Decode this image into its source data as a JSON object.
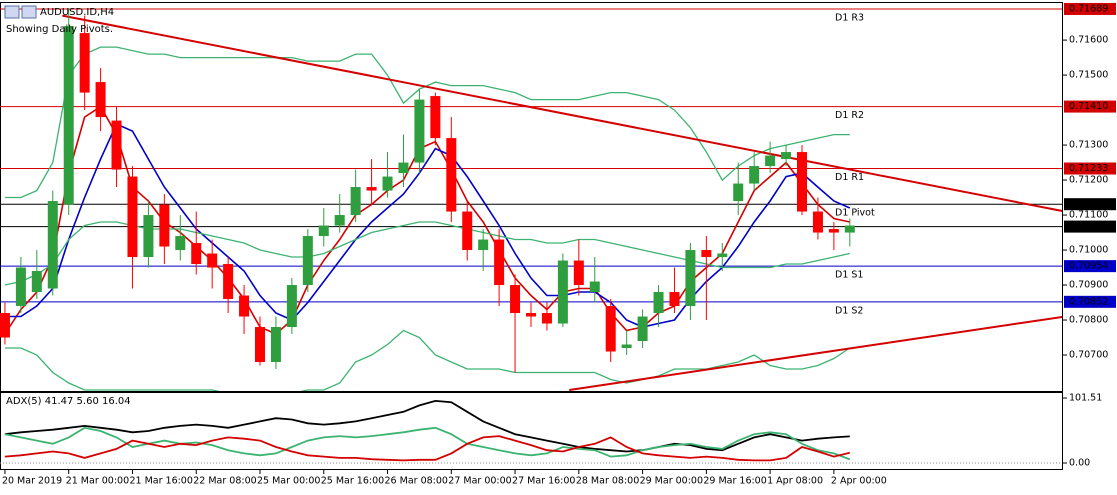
{
  "chart_data": {
    "type": "candlestick",
    "symbol": "AUDUSD.ID,H4",
    "subtitle": "Showing Daily Pivots.",
    "categories": [
      "20 Mar 2019",
      null,
      null,
      null,
      "21 Mar 00:00",
      null,
      null,
      null,
      "21 Mar 16:00",
      null,
      null,
      null,
      "22 Mar 08:00",
      null,
      null,
      null,
      "25 Mar 00:00",
      null,
      null,
      null,
      "25 Mar 16:00",
      null,
      null,
      null,
      "26 Mar 08:00",
      null,
      null,
      null,
      "27 Mar 00:00",
      null,
      null,
      null,
      "27 Mar 16:00",
      null,
      null,
      null,
      "28 Mar 08:00",
      null,
      null,
      null,
      "29 Mar 00:00",
      null,
      null,
      null,
      "29 Mar 16:00",
      null,
      null,
      null,
      "1 Apr 08:00",
      null,
      null,
      null,
      "2 Apr 00:00",
      null
    ],
    "open": [
      0.7082,
      0.7084,
      0.7088,
      0.7089,
      0.7113,
      0.7162,
      0.7148,
      0.7137,
      0.7121,
      0.7098,
      0.7113,
      0.71,
      0.7102,
      0.7099,
      0.7096,
      0.7087,
      0.7078,
      0.7068,
      0.7078,
      0.709,
      0.7104,
      0.7107,
      0.711,
      0.7118,
      0.7117,
      0.7122,
      0.7125,
      0.7144,
      0.7132,
      0.7111,
      0.71,
      0.7103,
      0.709,
      0.7082,
      0.7082,
      0.7079,
      0.7097,
      0.7088,
      0.7084,
      0.7072,
      0.7074,
      0.7082,
      0.7088,
      0.7084,
      0.71,
      0.7098,
      0.7114,
      0.7119,
      0.7124,
      0.7126,
      0.7128,
      0.7111,
      0.7106,
      0.7105
    ],
    "high": [
      0.7085,
      0.7098,
      0.71,
      0.7117,
      0.7169,
      0.7167,
      0.7152,
      0.7141,
      0.7124,
      0.7114,
      0.7116,
      0.711,
      0.7111,
      0.7103,
      0.7098,
      0.709,
      0.7081,
      0.7081,
      0.7092,
      0.7106,
      0.7112,
      0.7116,
      0.7123,
      0.7126,
      0.7128,
      0.7133,
      0.7146,
      0.7145,
      0.7138,
      0.7114,
      0.7106,
      0.7106,
      0.7093,
      0.7085,
      0.7085,
      0.7099,
      0.7103,
      0.7098,
      0.7086,
      0.7077,
      0.7083,
      0.709,
      0.7095,
      0.7102,
      0.7104,
      0.7102,
      0.7125,
      0.7128,
      0.7131,
      0.713,
      0.713,
      0.7115,
      0.7108,
      0.7109
    ],
    "low": [
      0.7073,
      0.7082,
      0.7086,
      0.7087,
      0.711,
      0.714,
      0.7134,
      0.7118,
      0.7089,
      0.7095,
      0.7096,
      0.7097,
      0.7093,
      0.7089,
      0.7082,
      0.7076,
      0.7067,
      0.7066,
      0.7076,
      0.7088,
      0.7101,
      0.7105,
      0.7108,
      0.7113,
      0.7115,
      0.7118,
      0.7122,
      0.713,
      0.7108,
      0.7097,
      0.7094,
      0.7084,
      0.7065,
      0.7078,
      0.7077,
      0.7078,
      0.7087,
      0.7085,
      0.7068,
      0.707,
      0.7072,
      0.7078,
      0.7082,
      0.708,
      0.708,
      0.7094,
      0.711,
      0.7117,
      0.7122,
      0.7124,
      0.711,
      0.7103,
      0.71,
      0.7101
    ],
    "close": [
      0.7075,
      0.7095,
      0.7094,
      0.7114,
      0.7164,
      0.7145,
      0.7138,
      0.7123,
      0.7098,
      0.711,
      0.7101,
      0.7104,
      0.7096,
      0.7095,
      0.7086,
      0.7081,
      0.7068,
      0.7078,
      0.709,
      0.7104,
      0.7107,
      0.711,
      0.7118,
      0.7117,
      0.7121,
      0.7125,
      0.7143,
      0.7132,
      0.7111,
      0.71,
      0.7103,
      0.709,
      0.7082,
      0.7081,
      0.7079,
      0.7097,
      0.709,
      0.7091,
      0.7071,
      0.7073,
      0.7081,
      0.7088,
      0.7084,
      0.71,
      0.7098,
      0.7099,
      0.7119,
      0.7124,
      0.7127,
      0.7128,
      0.7111,
      0.7105,
      0.7105,
      0.7107
    ],
    "up_color": "#2e9e3e",
    "down_color": "#ff0000",
    "series": [
      {
        "color": "#d40000",
        "values": [
          0.7076,
          0.7083,
          0.7088,
          0.7098,
          0.7122,
          0.7138,
          0.7141,
          0.7133,
          0.7118,
          0.7114,
          0.7108,
          0.7105,
          0.7101,
          0.7097,
          0.7092,
          0.7086,
          0.7078,
          0.7076,
          0.708,
          0.709,
          0.7097,
          0.7103,
          0.711,
          0.7113,
          0.7117,
          0.712,
          0.7129,
          0.7131,
          0.7123,
          0.7114,
          0.7108,
          0.71,
          0.7092,
          0.7087,
          0.7083,
          0.7088,
          0.7089,
          0.7089,
          0.7082,
          0.7077,
          0.7078,
          0.7082,
          0.7084,
          0.7091,
          0.7095,
          0.7099,
          0.7108,
          0.7117,
          0.7121,
          0.7125,
          0.7119,
          0.7113,
          0.7109,
          0.7108
        ]
      },
      {
        "color": "#0000c8",
        "values": [
          0.7081,
          0.7081,
          0.7084,
          0.7089,
          0.7103,
          0.7115,
          0.7126,
          0.7136,
          0.7134,
          0.7126,
          0.7118,
          0.7112,
          0.7106,
          0.7102,
          0.7098,
          0.7094,
          0.7087,
          0.7082,
          0.708,
          0.7085,
          0.7091,
          0.7097,
          0.7103,
          0.7108,
          0.7112,
          0.7116,
          0.7122,
          0.7129,
          0.7127,
          0.7121,
          0.7114,
          0.7107,
          0.7099,
          0.7092,
          0.7087,
          0.7087,
          0.7088,
          0.7088,
          0.7085,
          0.708,
          0.7078,
          0.7079,
          0.708,
          0.7086,
          0.7091,
          0.7095,
          0.7101,
          0.7108,
          0.7114,
          0.7121,
          0.7122,
          0.7118,
          0.7114,
          0.7112
        ]
      },
      {
        "color": "#3cb371",
        "values": [
          0.7115,
          0.7115,
          0.7117,
          0.7125,
          0.715,
          0.7156,
          0.7158,
          0.7158,
          0.7157,
          0.7156,
          0.7156,
          0.7155,
          0.7155,
          0.7155,
          0.7155,
          0.7155,
          0.7155,
          0.7155,
          0.7155,
          0.7154,
          0.7154,
          0.7154,
          0.7156,
          0.7156,
          0.715,
          0.7142,
          0.7146,
          0.7148,
          0.7147,
          0.7147,
          0.7147,
          0.7146,
          0.7145,
          0.7143,
          0.7143,
          0.7143,
          0.7143,
          0.7144,
          0.7145,
          0.7145,
          0.7144,
          0.7143,
          0.714,
          0.7135,
          0.7128,
          0.712,
          0.7124,
          0.7127,
          0.7129,
          0.713,
          0.7131,
          0.7132,
          0.7133,
          0.7133
        ]
      },
      {
        "color": "#3cb371",
        "values": [
          0.709,
          0.7091,
          0.7093,
          0.7096,
          0.7103,
          0.7107,
          0.7108,
          0.7108,
          0.7107,
          0.7106,
          0.7106,
          0.7106,
          0.7105,
          0.7104,
          0.7103,
          0.7102,
          0.71,
          0.7099,
          0.7098,
          0.7098,
          0.7099,
          0.7101,
          0.7103,
          0.7105,
          0.7106,
          0.7107,
          0.7108,
          0.7108,
          0.7107,
          0.7106,
          0.7105,
          0.7104,
          0.7103,
          0.7103,
          0.7102,
          0.7102,
          0.7103,
          0.7103,
          0.7102,
          0.7101,
          0.71,
          0.7099,
          0.7098,
          0.7097,
          0.7096,
          0.7095,
          0.7095,
          0.7095,
          0.7095,
          0.7096,
          0.7096,
          0.7097,
          0.7098,
          0.7099
        ]
      },
      {
        "color": "#3cb371",
        "values": [
          0.7072,
          0.7072,
          0.707,
          0.7065,
          0.7062,
          0.706,
          0.706,
          0.706,
          0.706,
          0.706,
          0.706,
          0.706,
          0.706,
          0.706,
          0.7059,
          0.7059,
          0.7059,
          0.7059,
          0.7059,
          0.706,
          0.706,
          0.7062,
          0.7068,
          0.707,
          0.7073,
          0.7077,
          0.7075,
          0.707,
          0.7068,
          0.7066,
          0.7066,
          0.7066,
          0.7065,
          0.7065,
          0.7065,
          0.7065,
          0.7065,
          0.7065,
          0.7063,
          0.7062,
          0.7063,
          0.7064,
          0.7066,
          0.7066,
          0.7066,
          0.7067,
          0.7068,
          0.707,
          0.7067,
          0.7066,
          0.7066,
          0.7067,
          0.7069,
          0.7072
        ]
      }
    ],
    "trendlines": [
      {
        "color": "#d40000",
        "x": [
          3.6,
          66.5
        ],
        "y": [
          0.7167,
          0.7111
        ]
      },
      {
        "color": "#d40000",
        "x": [
          35.4,
          66.5
        ],
        "y": [
          0.706,
          0.7081
        ]
      }
    ],
    "pivots": [
      {
        "name": "D1 R3",
        "value": 0.71689,
        "label": "0.71689",
        "color": "#d40000"
      },
      {
        "name": "D1 R2",
        "value": 0.7141,
        "label": "0.71410",
        "color": "#d40000"
      },
      {
        "name": "D1 R1",
        "value": 0.71233,
        "label": "0.71233",
        "color": "#d40000"
      },
      {
        "name": "D1 Pivot",
        "value": 0.71131,
        "label": "0.71131",
        "color": "#000000"
      },
      {
        "name": "D1 S1",
        "value": 0.70954,
        "label": "0.70954",
        "color": "#0000c8"
      },
      {
        "name": "D1 S2",
        "value": 0.70852,
        "label": "0.70852",
        "color": "#0000c8"
      }
    ],
    "bid": {
      "value": 0.71067,
      "label": "0.71067",
      "color": "#000000"
    },
    "xlim": [
      -0.31,
      66.31
    ],
    "ylim": [
      0.706,
      0.71706
    ],
    "yticks": [
      {
        "value": 0.716,
        "label": "0.71600"
      },
      {
        "value": 0.715,
        "label": "0.71500"
      },
      {
        "value": 0.713,
        "label": "0.71300"
      },
      {
        "value": 0.712,
        "label": "0.71200"
      },
      {
        "value": 0.711,
        "label": "0.71100"
      },
      {
        "value": 0.71,
        "label": "0.71000"
      },
      {
        "value": 0.709,
        "label": "0.70900"
      },
      {
        "value": 0.708,
        "label": "0.70800"
      },
      {
        "value": 0.707,
        "label": "0.70700"
      }
    ],
    "adx": {
      "title": "ADX(5) 41.47 5.60 16.04",
      "ylim": [
        0,
        101.51
      ],
      "yticks": [
        {
          "value": 101.51,
          "label": "101.51"
        },
        {
          "value": 0,
          "label": "0.00"
        }
      ],
      "series": [
        {
          "color": "#000000",
          "values": [
            45,
            48,
            50,
            52,
            55,
            58,
            55,
            52,
            48,
            50,
            55,
            58,
            60,
            58,
            55,
            60,
            65,
            70,
            68,
            62,
            60,
            62,
            65,
            70,
            75,
            80,
            90,
            97,
            95,
            80,
            65,
            55,
            45,
            40,
            35,
            30,
            25,
            22,
            20,
            18,
            20,
            25,
            30,
            28,
            22,
            20,
            30,
            40,
            45,
            40,
            35,
            38,
            40,
            41.47
          ]
        },
        {
          "color": "#3cb371",
          "values": [
            45,
            40,
            35,
            30,
            40,
            55,
            50,
            40,
            25,
            30,
            35,
            30,
            32,
            28,
            20,
            15,
            12,
            15,
            25,
            35,
            40,
            42,
            40,
            42,
            45,
            48,
            52,
            55,
            45,
            30,
            25,
            20,
            15,
            12,
            15,
            25,
            22,
            20,
            10,
            12,
            20,
            25,
            28,
            30,
            25,
            22,
            35,
            45,
            48,
            45,
            30,
            20,
            15,
            5.6
          ]
        },
        {
          "color": "#d40000",
          "values": [
            10,
            12,
            15,
            18,
            15,
            8,
            15,
            22,
            35,
            30,
            25,
            30,
            28,
            35,
            40,
            38,
            35,
            25,
            18,
            12,
            10,
            8,
            8,
            6,
            5,
            4,
            5,
            5,
            15,
            30,
            40,
            42,
            35,
            28,
            20,
            18,
            25,
            30,
            40,
            25,
            15,
            12,
            10,
            8,
            10,
            8,
            5,
            4,
            4,
            8,
            25,
            18,
            10,
            16.04
          ]
        }
      ]
    }
  }
}
